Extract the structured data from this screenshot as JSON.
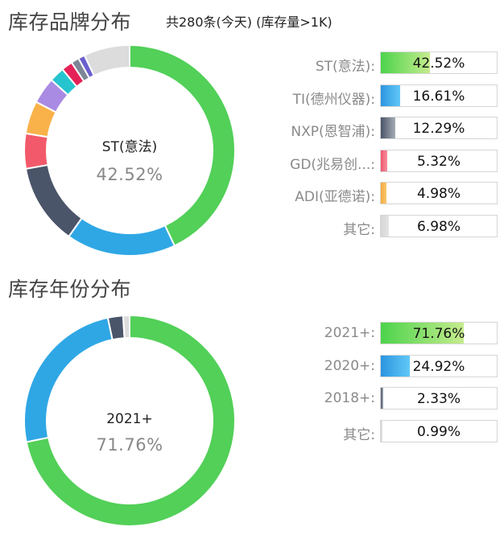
{
  "brand": {
    "title": "库存品牌分布",
    "subtitle": "共280条(今天) (库存量>1K)",
    "center_name": "ST(意法)",
    "center_pct": "42.52%",
    "legend": [
      {
        "label": "ST(意法):",
        "pct_text": "42.52%",
        "fraction": 0.4252,
        "fill_from": "#4cd34c",
        "fill_to": "#c6ec8e"
      },
      {
        "label": "TI(德州仪器):",
        "pct_text": "16.61%",
        "fraction": 0.1661,
        "fill_from": "#2b95e0",
        "fill_to": "#62c8f7"
      },
      {
        "label": "NXP(恩智浦):",
        "pct_text": "12.29%",
        "fraction": 0.1229,
        "fill_from": "#4a5468",
        "fill_to": "#a7adb8"
      },
      {
        "label": "GD(兆易创...:",
        "pct_text": "5.32%",
        "fraction": 0.0532,
        "fill_from": "#f0566c",
        "fill_to": "#f7909e"
      },
      {
        "label": "ADI(亚德诺):",
        "pct_text": "4.98%",
        "fraction": 0.0498,
        "fill_from": "#f4ab3c",
        "fill_to": "#f9c770"
      },
      {
        "label": "其它:",
        "pct_text": "6.98%",
        "fraction": 0.0698,
        "fill_from": "#d6d6d6",
        "fill_to": "#e4e4e4"
      }
    ]
  },
  "year": {
    "title": "库存年份分布",
    "center_name": "2021+",
    "center_pct": "71.76%",
    "legend": [
      {
        "label": "2021+:",
        "pct_text": "71.76%",
        "fraction": 0.7176,
        "fill_from": "#4cd34c",
        "fill_to": "#c6ec8e"
      },
      {
        "label": "2020+:",
        "pct_text": "24.92%",
        "fraction": 0.2492,
        "fill_from": "#2b95e0",
        "fill_to": "#62c8f7"
      },
      {
        "label": "2018+:",
        "pct_text": "2.33%",
        "fraction": 0.0233,
        "fill_from": "#4a5468",
        "fill_to": "#a7adb8"
      },
      {
        "label": "其它:",
        "pct_text": "0.99%",
        "fraction": 0.0099,
        "fill_from": "#d6d6d6",
        "fill_to": "#e4e4e4"
      }
    ]
  },
  "chart_data": [
    {
      "type": "pie",
      "title": "库存品牌分布",
      "categories": [
        "ST(意法)",
        "TI(德州仪器)",
        "NXP(恩智浦)",
        "GD(兆易创...",
        "ADI(亚德诺)",
        "",
        "",
        "",
        "",
        "",
        "其它"
      ],
      "values": [
        42.52,
        16.61,
        12.29,
        5.32,
        4.98,
        4.0,
        2.3,
        1.7,
        1.2,
        1.0,
        6.98
      ],
      "colors": [
        "#52d058",
        "#2fa7e5",
        "#4b5569",
        "#f25a6b",
        "#f9b24a",
        "#a98be3",
        "#26c4cf",
        "#e52258",
        "#7d8696",
        "#6a5fcf",
        "#dcdcdc"
      ]
    },
    {
      "type": "pie",
      "title": "库存年份分布",
      "categories": [
        "2021+",
        "2020+",
        "2018+",
        "其它"
      ],
      "values": [
        71.76,
        24.92,
        2.33,
        0.99
      ],
      "colors": [
        "#52d058",
        "#2fa7e5",
        "#4b5569",
        "#dcdcdc"
      ]
    }
  ]
}
